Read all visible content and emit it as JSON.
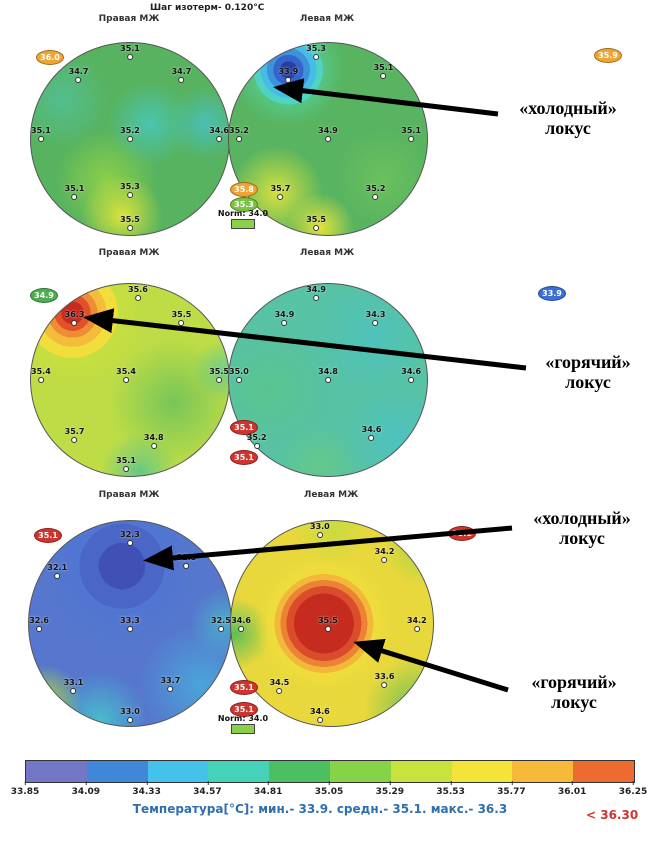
{
  "title": "Шаг изотерм- 0.120°C",
  "annotations": [
    {
      "line1": "«холодный»",
      "line2": "локус"
    },
    {
      "line1": "«горячий»",
      "line2": "локус"
    },
    {
      "line1": "«холодный»",
      "line2": "локус"
    },
    {
      "line1": "«горячий»",
      "line2": "локус"
    }
  ],
  "chart_data": {
    "type": "heatmap",
    "description": "Three pairs of breast thermography contour maps with spot temperatures in °C",
    "pairs": [
      {
        "left": {
          "label": "Правая МЖ",
          "badge": {
            "value": "36.0",
            "color": "#f0a532"
          },
          "points": [
            {
              "value": "35.1",
              "x": 50,
              "y": 2
            },
            {
              "value": "34.7",
              "x": 24,
              "y": 14
            },
            {
              "value": "34.7",
              "x": 76,
              "y": 14
            },
            {
              "value": "35.1",
              "x": 5,
              "y": 45
            },
            {
              "value": "35.2",
              "x": 50,
              "y": 45
            },
            {
              "value": "34.6",
              "x": 95,
              "y": 45
            },
            {
              "value": "35.1",
              "x": 22,
              "y": 75
            },
            {
              "value": "35.3",
              "x": 50,
              "y": 74
            },
            {
              "value": "35.5",
              "x": 50,
              "y": 91
            }
          ]
        },
        "right": {
          "label": "Левая МЖ",
          "badge": {
            "value": "35.9",
            "color": "#f0a532"
          },
          "points": [
            {
              "value": "35.3",
              "x": 44,
              "y": 2
            },
            {
              "value": "33.9",
              "x": 30,
              "y": 14
            },
            {
              "value": "35.1",
              "x": 78,
              "y": 12
            },
            {
              "value": "35.2",
              "x": 5,
              "y": 45
            },
            {
              "value": "34.9",
              "x": 50,
              "y": 45
            },
            {
              "value": "35.1",
              "x": 92,
              "y": 45
            },
            {
              "value": "35.7",
              "x": 26,
              "y": 75
            },
            {
              "value": "35.2",
              "x": 74,
              "y": 75
            },
            {
              "value": "35.5",
              "x": 44,
              "y": 91
            }
          ]
        },
        "middle": {
          "badges": [
            {
              "value": "35.8",
              "color": "#f0a532"
            },
            {
              "value": "35.3",
              "color": "#7dc243"
            }
          ],
          "norm_label": "Norm: 34.0",
          "norm_color": "#8bd04a"
        }
      },
      {
        "left": {
          "label": "Правая МЖ",
          "badge": {
            "value": "34.9",
            "color": "#4caf50"
          },
          "points": [
            {
              "value": "35.6",
              "x": 54,
              "y": 2
            },
            {
              "value": "36.3",
              "x": 22,
              "y": 15
            },
            {
              "value": "35.5",
              "x": 76,
              "y": 15
            },
            {
              "value": "35.4",
              "x": 5,
              "y": 45
            },
            {
              "value": "35.4",
              "x": 48,
              "y": 45
            },
            {
              "value": "35.5",
              "x": 95,
              "y": 45
            },
            {
              "value": "35.7",
              "x": 22,
              "y": 76
            },
            {
              "value": "34.8",
              "x": 62,
              "y": 79
            },
            {
              "value": "35.1",
              "x": 48,
              "y": 91
            }
          ]
        },
        "right": {
          "label": "Левая МЖ",
          "badge": {
            "value": "33.9",
            "color": "#3a6fd8"
          },
          "points": [
            {
              "value": "34.9",
              "x": 44,
              "y": 2
            },
            {
              "value": "34.9",
              "x": 28,
              "y": 15
            },
            {
              "value": "34.3",
              "x": 74,
              "y": 15
            },
            {
              "value": "35.0",
              "x": 5,
              "y": 45
            },
            {
              "value": "34.8",
              "x": 50,
              "y": 45
            },
            {
              "value": "34.6",
              "x": 92,
              "y": 45
            },
            {
              "value": "35.2",
              "x": 14,
              "y": 79
            },
            {
              "value": "34.6",
              "x": 72,
              "y": 75
            }
          ]
        },
        "middle": {
          "badges": [
            {
              "value": "35.1",
              "color": "#d0342c"
            },
            {
              "value": "35.1",
              "color": "#d0342c"
            }
          ]
        }
      },
      {
        "left": {
          "label": "Правая МЖ",
          "badge": {
            "value": "35.1",
            "color": "#d0342c"
          },
          "points": [
            {
              "value": "32.3",
              "x": 50,
              "y": 6
            },
            {
              "value": "32.1",
              "x": 14,
              "y": 22
            },
            {
              "value": "32.5",
              "x": 78,
              "y": 17
            },
            {
              "value": "32.6",
              "x": 5,
              "y": 48
            },
            {
              "value": "33.3",
              "x": 50,
              "y": 48
            },
            {
              "value": "32.5",
              "x": 95,
              "y": 48
            },
            {
              "value": "33.1",
              "x": 22,
              "y": 78
            },
            {
              "value": "33.7",
              "x": 70,
              "y": 77
            },
            {
              "value": "33.0",
              "x": 50,
              "y": 92
            }
          ]
        },
        "right": {
          "label": "Левая МЖ",
          "badge": {
            "value": "35.1",
            "color": "#d0342c"
          },
          "points": [
            {
              "value": "33.0",
              "x": 44,
              "y": 2
            },
            {
              "value": "34.2",
              "x": 76,
              "y": 14
            },
            {
              "value": "34.6",
              "x": 5,
              "y": 48
            },
            {
              "value": "35.5",
              "x": 48,
              "y": 48
            },
            {
              "value": "34.2",
              "x": 92,
              "y": 48
            },
            {
              "value": "34.5",
              "x": 24,
              "y": 78
            },
            {
              "value": "33.6",
              "x": 76,
              "y": 75
            },
            {
              "value": "34.6",
              "x": 44,
              "y": 92
            }
          ]
        },
        "middle": {
          "badges": [
            {
              "value": "35.1",
              "color": "#d0342c"
            },
            {
              "value": "35.1",
              "color": "#d0342c"
            }
          ],
          "norm_label": "Norm: 34.0",
          "norm_color": "#8bd04a"
        }
      }
    ],
    "colorbar": {
      "ticks": [
        "33.85",
        "34.09",
        "34.33",
        "34.57",
        "34.81",
        "35.05",
        "35.29",
        "35.53",
        "35.77",
        "36.01",
        "36.25"
      ],
      "segment_colors": [
        "#7277c6",
        "#3f87d8",
        "#46c2ea",
        "#46d2b8",
        "#4cbf62",
        "#86d348",
        "#c8e23e",
        "#f4e43a",
        "#f6b93a",
        "#ed6a31"
      ],
      "caption": "Температура[°C]: мин.- 33.9. средн.- 35.1. макс.- 36.3",
      "caption_color": "#2f6fae",
      "overflow_label": "< 36.30",
      "overflow_color": "#d0342c"
    }
  }
}
